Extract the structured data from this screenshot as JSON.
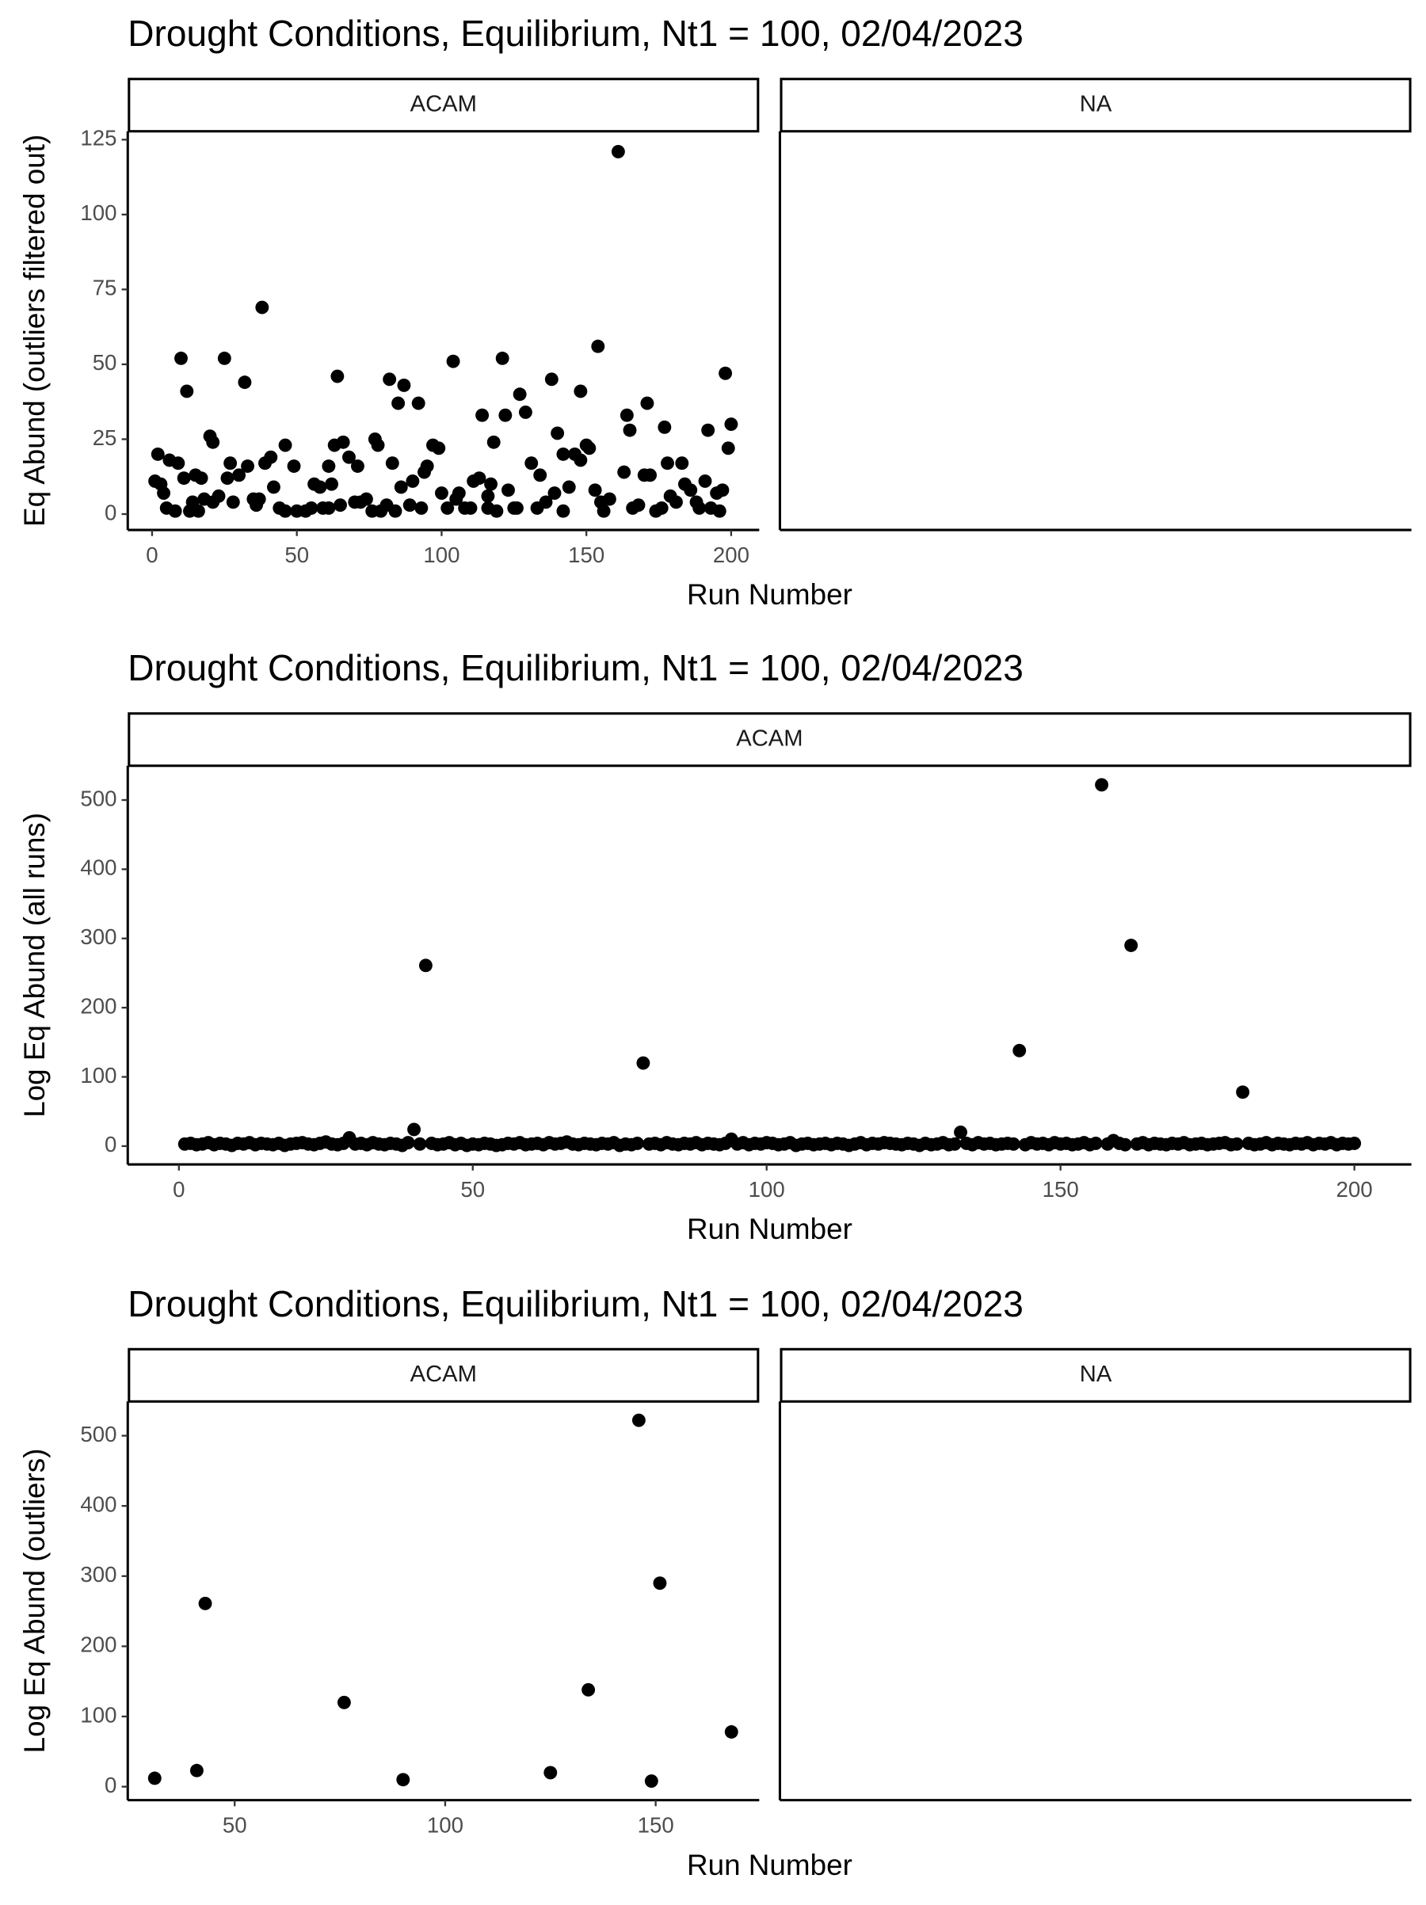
{
  "chart_data": [
    {
      "type": "scatter",
      "title": "Drought Conditions, Equilibrium, Nt1 = 100,  02/04/2023",
      "xlabel": "Run Number",
      "ylabel": "Eq Abund (outliers filtered out)",
      "facets": [
        "ACAM",
        "NA"
      ],
      "color": "#000000",
      "xlim": [
        -8.4,
        209.7
      ],
      "ylim": [
        -5.3,
        127.8
      ],
      "xticks": [
        0,
        50,
        100,
        150,
        200
      ],
      "yticks": [
        0,
        25,
        50,
        75,
        100,
        125
      ],
      "x": [
        1,
        2,
        3,
        4,
        6,
        5,
        8,
        9,
        10,
        11,
        12,
        13,
        14,
        15,
        16,
        17,
        18,
        20,
        21,
        21,
        23,
        25,
        26,
        27,
        28,
        30,
        32,
        33,
        35,
        36,
        37,
        38,
        39,
        41,
        42,
        44,
        46,
        46,
        49,
        50,
        53,
        55,
        56,
        58,
        59,
        61,
        61,
        62,
        63,
        64,
        66,
        65,
        68,
        71,
        70,
        72,
        74,
        76,
        77,
        78,
        79,
        81,
        82,
        83,
        84,
        85,
        86,
        87,
        89,
        90,
        92,
        93,
        94,
        95,
        97,
        99,
        100,
        102,
        104,
        105,
        106,
        108,
        110,
        111,
        113,
        114,
        116,
        116,
        117,
        118,
        119,
        121,
        122,
        123,
        125,
        126,
        127,
        129,
        131,
        133,
        134,
        136,
        138,
        139,
        140,
        142,
        142,
        144,
        146,
        148,
        148,
        150,
        151,
        153,
        154,
        155,
        156,
        158,
        161,
        163,
        164,
        165,
        166,
        168,
        170,
        171,
        172,
        174,
        176,
        177,
        178,
        179,
        181,
        183,
        184,
        186,
        188,
        189,
        191,
        192,
        193,
        195,
        196,
        198,
        199,
        200,
        197
      ],
      "y": [
        11,
        20,
        10,
        7,
        18,
        2,
        1,
        17,
        52,
        12,
        41,
        1,
        4,
        13,
        1,
        12,
        5,
        26,
        24,
        4,
        6,
        52,
        12,
        17,
        4,
        13,
        44,
        16,
        5,
        3,
        5,
        69,
        17,
        19,
        9,
        2,
        23,
        1,
        16,
        1,
        1,
        2,
        10,
        9,
        2,
        2,
        16,
        10,
        23,
        46,
        24,
        3,
        19,
        16,
        4,
        4,
        5,
        1,
        25,
        23,
        1,
        3,
        45,
        17,
        1,
        37,
        9,
        43,
        3,
        11,
        37,
        2,
        14,
        16,
        23,
        22,
        7,
        2,
        51,
        5,
        7,
        2,
        2,
        11,
        12,
        33,
        2,
        6,
        10,
        24,
        1,
        52,
        33,
        8,
        2,
        2,
        40,
        34,
        17,
        2,
        13,
        4,
        45,
        7,
        27,
        1,
        20,
        9,
        20,
        18,
        41,
        23,
        22,
        8,
        56,
        4,
        1,
        5,
        121,
        14,
        33,
        28,
        2,
        3,
        13,
        37,
        13,
        1,
        2,
        29,
        17,
        6,
        4,
        17,
        10,
        8,
        4,
        2,
        11,
        28,
        2,
        7,
        1,
        47,
        22,
        30,
        8
      ]
    },
    {
      "type": "scatter",
      "title": "Drought Conditions, Equilibrium, Nt1 = 100, 02/04/2023",
      "xlabel": "Run Number",
      "ylabel": "Log Eq Abund (all runs)",
      "facets": [
        "ACAM"
      ],
      "color": "#000000",
      "xlim": [
        -8.7,
        209.7
      ],
      "ylim": [
        -26.5,
        549.5
      ],
      "xticks": [
        0,
        50,
        100,
        150,
        200
      ],
      "yticks": [
        0,
        100,
        200,
        300,
        400,
        500
      ],
      "x": [
        1,
        2,
        3,
        4,
        5,
        6,
        7,
        8,
        9,
        10,
        11,
        12,
        13,
        14,
        15,
        16,
        17,
        18,
        19,
        20,
        21,
        22,
        23,
        24,
        25,
        26,
        27,
        28,
        29,
        30,
        31,
        32,
        33,
        34,
        35,
        36,
        37,
        38,
        39,
        40,
        41,
        42,
        43,
        44,
        45,
        46,
        47,
        48,
        49,
        50,
        51,
        52,
        53,
        54,
        55,
        56,
        57,
        58,
        59,
        60,
        61,
        62,
        63,
        64,
        65,
        66,
        67,
        68,
        69,
        70,
        71,
        72,
        73,
        74,
        75,
        76,
        77,
        78,
        79,
        80,
        81,
        82,
        83,
        84,
        85,
        86,
        87,
        88,
        89,
        90,
        91,
        92,
        93,
        94,
        95,
        96,
        97,
        98,
        99,
        100,
        101,
        102,
        103,
        104,
        105,
        106,
        107,
        108,
        109,
        110,
        111,
        112,
        113,
        114,
        115,
        116,
        117,
        118,
        119,
        120,
        121,
        122,
        123,
        124,
        125,
        126,
        127,
        128,
        129,
        130,
        131,
        132,
        133,
        134,
        135,
        136,
        137,
        138,
        139,
        140,
        141,
        142,
        143,
        144,
        145,
        146,
        147,
        148,
        149,
        150,
        151,
        152,
        153,
        154,
        155,
        156,
        157,
        158,
        159,
        160,
        161,
        162,
        163,
        164,
        165,
        166,
        167,
        168,
        169,
        170,
        171,
        172,
        173,
        174,
        175,
        176,
        177,
        178,
        179,
        180,
        181,
        182,
        183,
        184,
        185,
        186,
        187,
        188,
        189,
        190,
        191,
        192,
        193,
        194,
        195,
        196,
        197,
        198,
        199,
        200
      ],
      "y": [
        3,
        4,
        2,
        3,
        5,
        2,
        4,
        3,
        1,
        4,
        3,
        5,
        2,
        4,
        3,
        2,
        4,
        1,
        3,
        4,
        5,
        3,
        2,
        4,
        6,
        3,
        2,
        4,
        12,
        3,
        4,
        2,
        5,
        3,
        2,
        4,
        3,
        1,
        5,
        24,
        3,
        261,
        4,
        2,
        3,
        5,
        2,
        4,
        1,
        3,
        2,
        4,
        3,
        1,
        2,
        4,
        3,
        5,
        2,
        3,
        4,
        2,
        5,
        3,
        4,
        6,
        3,
        2,
        4,
        3,
        2,
        4,
        3,
        5,
        1,
        3,
        2,
        4,
        120,
        3,
        4,
        2,
        5,
        3,
        2,
        4,
        3,
        5,
        2,
        4,
        3,
        2,
        4,
        10,
        3,
        5,
        2,
        4,
        3,
        5,
        4,
        2,
        3,
        5,
        1,
        3,
        4,
        2,
        3,
        4,
        2,
        4,
        3,
        1,
        3,
        5,
        2,
        4,
        3,
        5,
        4,
        3,
        2,
        4,
        3,
        1,
        4,
        2,
        3,
        5,
        2,
        3,
        20,
        4,
        2,
        5,
        3,
        4,
        2,
        3,
        4,
        3,
        138,
        2,
        5,
        3,
        4,
        2,
        5,
        3,
        4,
        2,
        3,
        5,
        2,
        4,
        522,
        3,
        8,
        4,
        2,
        290,
        3,
        5,
        2,
        4,
        3,
        2,
        4,
        3,
        5,
        2,
        3,
        4,
        2,
        3,
        4,
        5,
        2,
        3,
        78,
        4,
        2,
        3,
        5,
        2,
        4,
        3,
        2,
        4,
        3,
        5,
        2,
        4,
        3,
        5,
        2,
        4,
        3,
        4
      ]
    },
    {
      "type": "scatter",
      "title": "Drought Conditions, Equilibrium, Nt1 = 100, 02/04/2023",
      "xlabel": "Run Number",
      "ylabel": "Log Eq Abund (outliers)",
      "facets": [
        "ACAM",
        "NA"
      ],
      "color": "#000000",
      "xlim": [
        24.6,
        174.6
      ],
      "ylim": [
        -19.2,
        548.8
      ],
      "xticks": [
        50,
        100,
        150
      ],
      "yticks": [
        0,
        100,
        200,
        300,
        400,
        500
      ],
      "x": [
        31,
        41,
        43,
        76,
        90,
        125,
        134,
        146,
        149,
        151,
        168
      ],
      "y": [
        12,
        23,
        261,
        120,
        10,
        20,
        138,
        522,
        8,
        290,
        78
      ]
    }
  ]
}
